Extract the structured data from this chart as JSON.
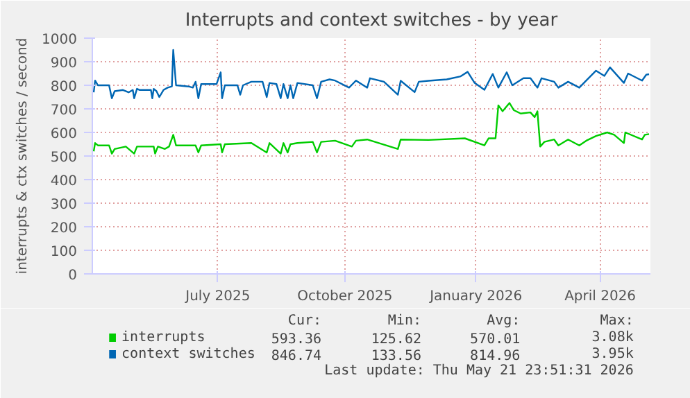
{
  "chart_data": {
    "type": "line",
    "title": "Interrupts and context switches - by year",
    "ylabel": "interrupts & ctx switches / second",
    "xlim": [
      "2025-04-17",
      "2026-05-22"
    ],
    "xticks": [
      {
        "value": "2025-07-16",
        "label": "July 2025"
      },
      {
        "value": "2025-10-15",
        "label": "October 2025"
      },
      {
        "value": "2026-01-17",
        "label": "January 2026"
      },
      {
        "value": "2026-04-16",
        "label": "April 2026"
      }
    ],
    "ylim": [
      0,
      1000
    ],
    "yticks": [
      0,
      100,
      200,
      300,
      400,
      500,
      600,
      700,
      800,
      900,
      1000
    ],
    "grid": true,
    "legend": "bottom",
    "series": [
      {
        "name": "interrupts",
        "color": "#00cc00",
        "x": [
          "2025-04-18",
          "2025-04-19",
          "2025-04-21",
          "2025-04-29",
          "2025-05-01",
          "2025-05-03",
          "2025-05-11",
          "2025-05-17",
          "2025-05-19",
          "2025-05-31",
          "2025-06-01",
          "2025-06-03",
          "2025-06-08",
          "2025-06-11",
          "2025-06-14",
          "2025-06-16",
          "2025-06-30",
          "2025-07-02",
          "2025-07-04",
          "2025-07-18",
          "2025-07-19",
          "2025-07-21",
          "2025-08-09",
          "2025-08-20",
          "2025-08-22",
          "2025-08-30",
          "2025-09-01",
          "2025-09-04",
          "2025-09-06",
          "2025-09-11",
          "2025-09-22",
          "2025-09-25",
          "2025-09-28",
          "2025-10-08",
          "2025-10-20",
          "2025-10-23",
          "2025-10-31",
          "2025-11-22",
          "2025-11-24",
          "2025-12-14",
          "2026-01-09",
          "2026-01-23",
          "2026-01-26",
          "2026-01-31",
          "2026-02-02",
          "2026-02-05",
          "2026-02-10",
          "2026-02-13",
          "2026-02-18",
          "2026-02-25",
          "2026-02-28",
          "2026-03-02",
          "2026-03-04",
          "2026-03-07",
          "2026-03-14",
          "2026-03-17",
          "2026-03-24",
          "2026-04-01",
          "2026-04-06",
          "2026-04-13",
          "2026-04-21",
          "2026-04-26",
          "2026-05-03",
          "2026-05-04",
          "2026-05-16",
          "2026-05-18",
          "2026-05-21"
        ],
        "values": [
          520,
          555,
          545,
          545,
          510,
          530,
          540,
          510,
          540,
          540,
          510,
          540,
          530,
          540,
          590,
          545,
          545,
          515,
          545,
          550,
          515,
          550,
          555,
          515,
          555,
          510,
          555,
          515,
          550,
          555,
          560,
          515,
          560,
          565,
          540,
          565,
          570,
          530,
          570,
          568,
          575,
          545,
          575,
          575,
          715,
          690,
          725,
          695,
          680,
          685,
          665,
          690,
          540,
          560,
          570,
          545,
          570,
          545,
          565,
          585,
          600,
          590,
          555,
          600,
          570,
          590,
          593
        ]
      },
      {
        "name": "context switches",
        "color": "#0066b3",
        "x": [
          "2025-04-18",
          "2025-04-19",
          "2025-04-21",
          "2025-04-29",
          "2025-05-01",
          "2025-05-03",
          "2025-05-09",
          "2025-05-13",
          "2025-05-16",
          "2025-05-17",
          "2025-05-19",
          "2025-05-21",
          "2025-05-29",
          "2025-05-30",
          "2025-05-31",
          "2025-06-02",
          "2025-06-04",
          "2025-06-07",
          "2025-06-10",
          "2025-06-13",
          "2025-06-14",
          "2025-06-16",
          "2025-06-25",
          "2025-06-28",
          "2025-06-30",
          "2025-07-02",
          "2025-07-04",
          "2025-07-15",
          "2025-07-18",
          "2025-07-19",
          "2025-07-21",
          "2025-07-30",
          "2025-08-01",
          "2025-08-03",
          "2025-08-09",
          "2025-08-17",
          "2025-08-20",
          "2025-08-22",
          "2025-08-27",
          "2025-08-30",
          "2025-09-01",
          "2025-09-04",
          "2025-09-06",
          "2025-09-08",
          "2025-09-11",
          "2025-09-22",
          "2025-09-25",
          "2025-09-28",
          "2025-10-04",
          "2025-10-08",
          "2025-10-18",
          "2025-10-23",
          "2025-10-31",
          "2025-11-02",
          "2025-11-12",
          "2025-11-22",
          "2025-11-24",
          "2025-12-04",
          "2025-12-07",
          "2025-12-14",
          "2025-12-27",
          "2026-01-06",
          "2026-01-11",
          "2026-01-16",
          "2026-01-23",
          "2026-01-29",
          "2026-02-02",
          "2026-02-08",
          "2026-02-12",
          "2026-02-20",
          "2026-02-25",
          "2026-03-02",
          "2026-03-05",
          "2026-03-14",
          "2026-03-17",
          "2026-03-24",
          "2026-04-01",
          "2026-04-06",
          "2026-04-13",
          "2026-04-19",
          "2026-04-23",
          "2026-05-03",
          "2026-05-06",
          "2026-05-16",
          "2026-05-19",
          "2026-05-21"
        ],
        "values": [
          770,
          820,
          800,
          800,
          745,
          775,
          780,
          770,
          780,
          745,
          785,
          780,
          780,
          745,
          785,
          775,
          750,
          780,
          790,
          795,
          950,
          800,
          795,
          790,
          815,
          745,
          805,
          805,
          855,
          745,
          800,
          800,
          760,
          800,
          815,
          815,
          750,
          810,
          805,
          745,
          805,
          745,
          800,
          745,
          810,
          800,
          745,
          815,
          825,
          820,
          790,
          820,
          790,
          830,
          815,
          760,
          819,
          771,
          815,
          819,
          825,
          838,
          857,
          810,
          781,
          848,
          790,
          855,
          800,
          830,
          830,
          790,
          830,
          815,
          790,
          815,
          790,
          820,
          862,
          840,
          876,
          810,
          850,
          820,
          845,
          847
        ]
      }
    ],
    "annotations": [
      "Cur:",
      "Min:",
      "Avg:",
      "Max:",
      "593.36",
      "125.62",
      "570.01",
      "3.08k",
      "846.74",
      "133.56",
      "814.96",
      "3.95k",
      "Last update: Thu May 21 23:51:31 2026"
    ]
  }
}
